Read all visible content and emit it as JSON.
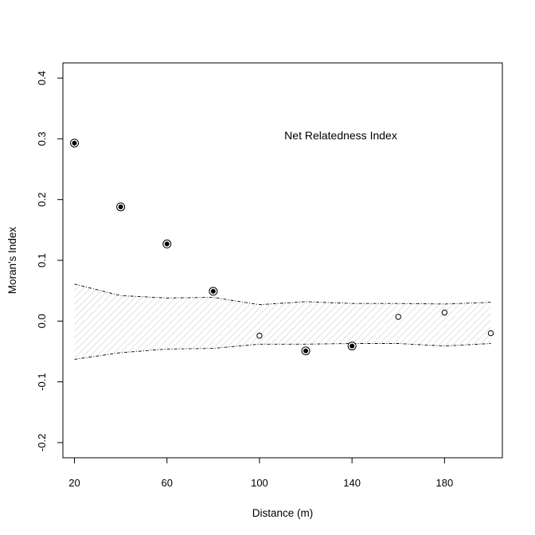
{
  "chart_data": {
    "type": "scatter",
    "title": "",
    "annotation": "Net Relatedness Index",
    "xlabel": "Distance (m)",
    "ylabel": "Moran's Index",
    "xlim": [
      15,
      205
    ],
    "ylim": [
      -0.225,
      0.425
    ],
    "xticks": [
      20,
      60,
      100,
      140,
      180
    ],
    "xtick_labels": [
      "20",
      "60",
      "100",
      "140",
      "180"
    ],
    "yticks": [
      -0.2,
      -0.1,
      0.0,
      0.1,
      0.2,
      0.3,
      0.4
    ],
    "ytick_labels": [
      "-0.2",
      "-0.1",
      "0.0",
      "0.1",
      "0.2",
      "0.3",
      "0.4"
    ],
    "grid": false,
    "points": [
      {
        "x": 20,
        "y": 0.293,
        "significant": true
      },
      {
        "x": 40,
        "y": 0.188,
        "significant": true
      },
      {
        "x": 60,
        "y": 0.127,
        "significant": true
      },
      {
        "x": 80,
        "y": 0.049,
        "significant": true
      },
      {
        "x": 100,
        "y": -0.024,
        "significant": false
      },
      {
        "x": 120,
        "y": -0.049,
        "significant": true
      },
      {
        "x": 140,
        "y": -0.041,
        "significant": true
      },
      {
        "x": 160,
        "y": 0.007,
        "significant": false
      },
      {
        "x": 180,
        "y": 0.014,
        "significant": false
      },
      {
        "x": 200,
        "y": -0.02,
        "significant": false
      }
    ],
    "envelope": {
      "x": [
        20,
        40,
        60,
        80,
        100,
        120,
        140,
        160,
        180,
        200
      ],
      "upper": [
        0.061,
        0.042,
        0.038,
        0.039,
        0.027,
        0.032,
        0.029,
        0.029,
        0.028,
        0.031
      ],
      "lower": [
        -0.063,
        -0.052,
        -0.046,
        -0.045,
        -0.038,
        -0.038,
        -0.037,
        -0.037,
        -0.041,
        -0.037
      ]
    }
  }
}
